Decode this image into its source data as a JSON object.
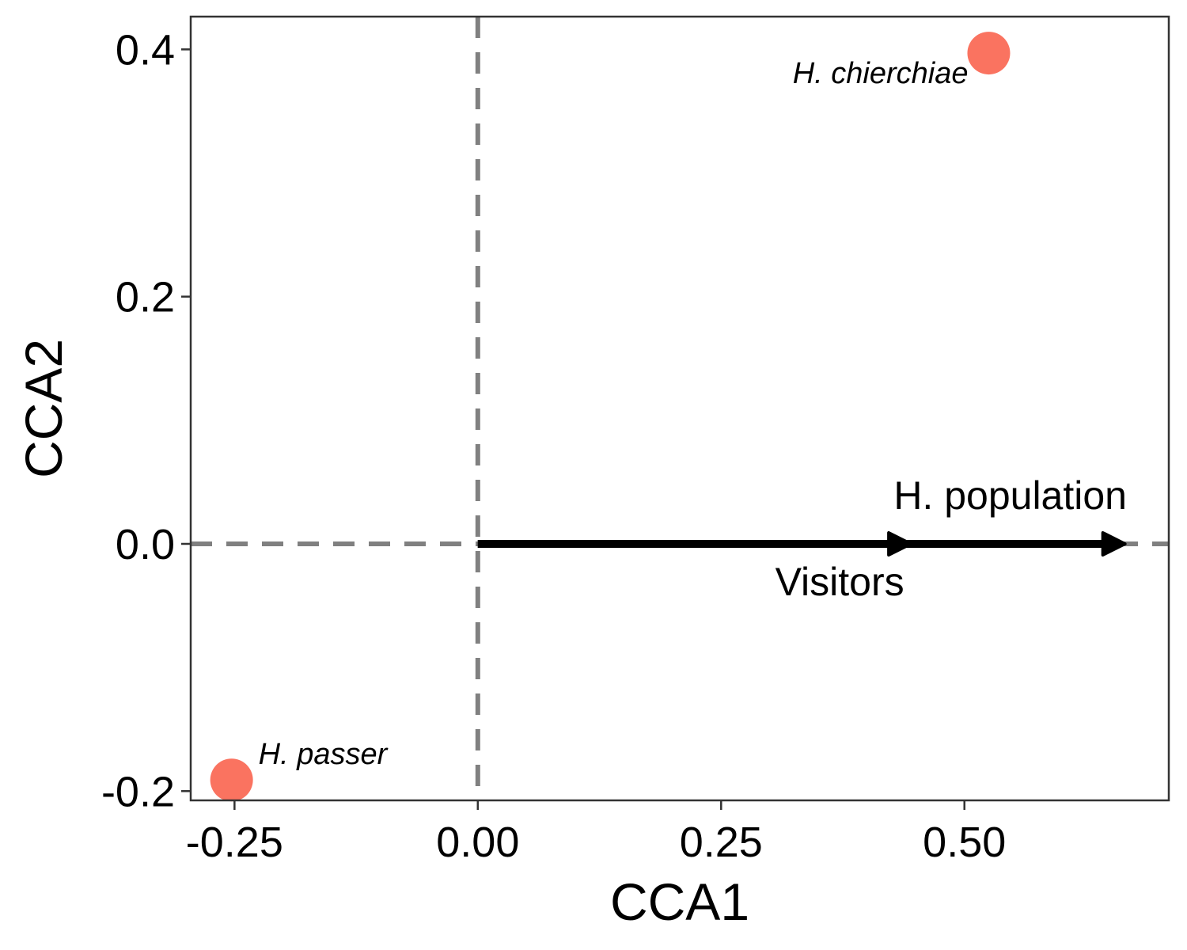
{
  "chart_data": {
    "type": "scatter",
    "title": "",
    "xlabel": "CCA1",
    "ylabel": "CCA2",
    "xlim": [
      -0.295,
      0.71
    ],
    "ylim": [
      -0.2075,
      0.4265
    ],
    "x_ticks": [
      {
        "value": -0.25,
        "label": "-0.25"
      },
      {
        "value": 0.0,
        "label": "0.00"
      },
      {
        "value": 0.25,
        "label": "0.25"
      },
      {
        "value": 0.5,
        "label": "0.50"
      }
    ],
    "y_ticks": [
      {
        "value": -0.2,
        "label": "-0.2"
      },
      {
        "value": 0.0,
        "label": "0.0"
      },
      {
        "value": 0.2,
        "label": "0.2"
      },
      {
        "value": 0.4,
        "label": "0.4"
      }
    ],
    "reference_lines": {
      "x": 0,
      "y": 0,
      "style": "dashed",
      "color": "#808080"
    },
    "points": [
      {
        "label": "H. chierchiae",
        "x": 0.525,
        "y": 0.397,
        "color": "#FA7360",
        "label_side": "left"
      },
      {
        "label": "H. passer",
        "x": -0.253,
        "y": -0.191,
        "color": "#FA7360",
        "label_side": "right"
      }
    ],
    "vectors": [
      {
        "label": "Visitors",
        "x": 0.445,
        "y": 0.0,
        "color": "#000000",
        "label_position": "below"
      },
      {
        "label": "H. population",
        "x": 0.665,
        "y": 0.0,
        "color": "#000000",
        "label_position": "above"
      }
    ],
    "grid": false,
    "legend": "none"
  }
}
